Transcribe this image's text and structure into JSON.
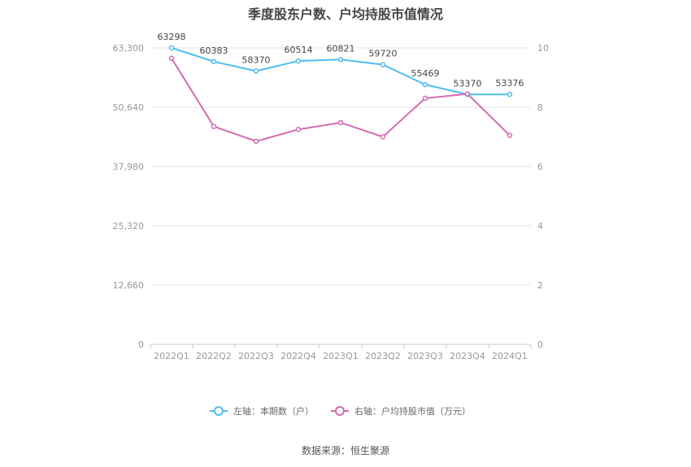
{
  "chart_data": {
    "type": "line",
    "title": "季度股东户数、户均持股市值情况",
    "categories": [
      "2022Q1",
      "2022Q2",
      "2022Q3",
      "2022Q4",
      "2023Q1",
      "2023Q2",
      "2023Q3",
      "2023Q4",
      "2024Q1"
    ],
    "series": [
      {
        "name": "左轴：本期数（户）",
        "axis": "left",
        "color": "#4fbdee",
        "values": [
          63298,
          60383,
          58370,
          60514,
          60821,
          59720,
          55469,
          53370,
          53376
        ],
        "data_labels": [
          "63298",
          "60383",
          "58370",
          "60514",
          "60821",
          "59720",
          "55469",
          "53370",
          "53376"
        ]
      },
      {
        "name": "右轴：户均持股市值（万元）",
        "axis": "right",
        "color": "#d26cb1",
        "values": [
          9.65,
          7.35,
          6.85,
          7.25,
          7.48,
          7.0,
          8.3,
          8.45,
          7.05
        ]
      }
    ],
    "y_left": {
      "ylim": [
        0,
        63300
      ],
      "ticks": [
        0,
        12660,
        25320,
        37980,
        50640,
        63300
      ],
      "tick_labels": [
        "0",
        "12,660",
        "25,320",
        "37,980",
        "50,640",
        "63,300"
      ]
    },
    "y_right": {
      "ylim": [
        0,
        10
      ],
      "ticks": [
        0,
        2,
        4,
        6,
        8,
        10
      ],
      "tick_labels": [
        "0",
        "2",
        "4",
        "6",
        "8",
        "10"
      ]
    },
    "grid": true,
    "legend_position": "bottom-center",
    "source": "数据来源：恒生聚源"
  }
}
